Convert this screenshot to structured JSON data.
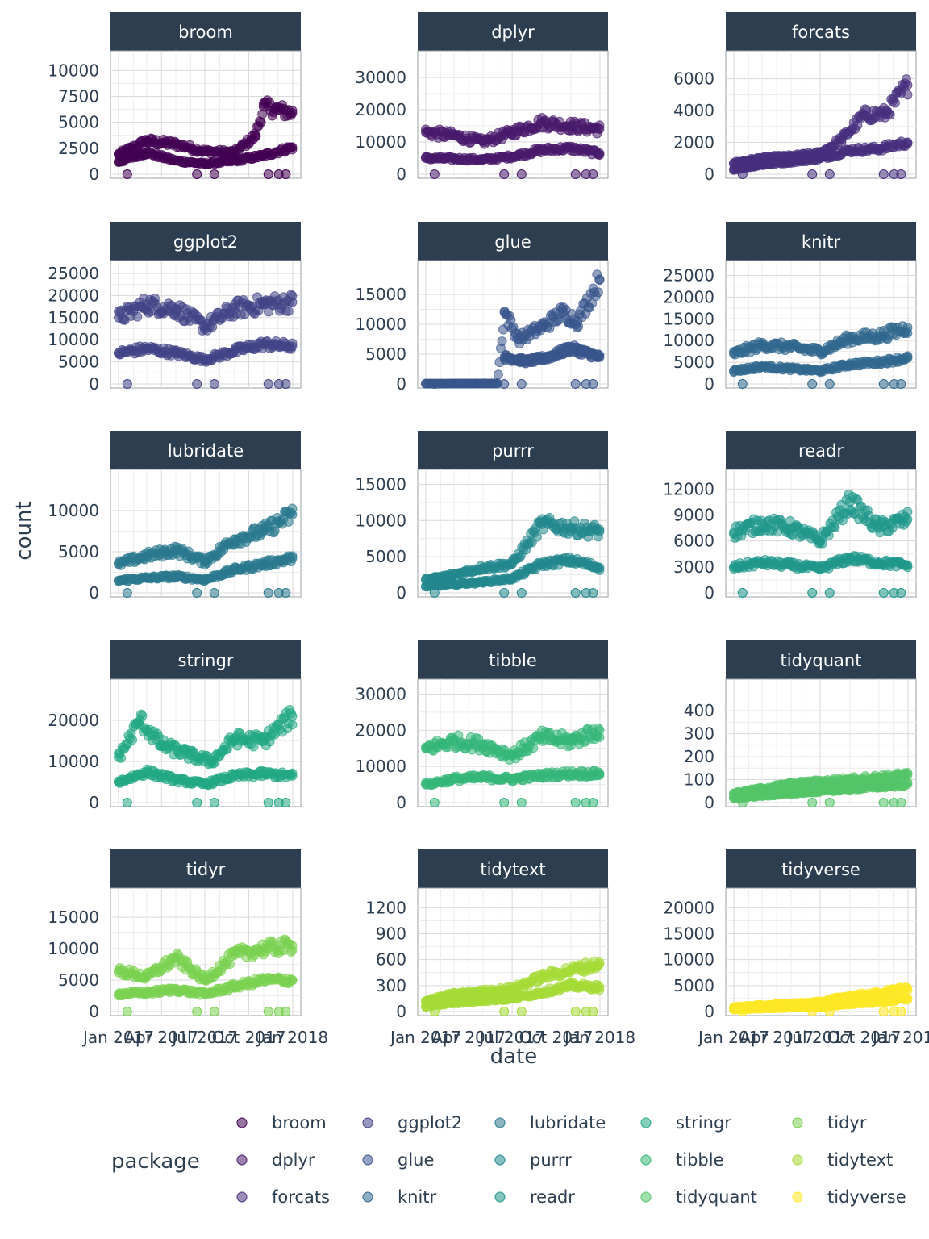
{
  "chart_data": {
    "type": "scatter",
    "xlabel": "date",
    "ylabel": "count",
    "x_tick_labels": [
      "Jan 2017",
      "Apr 2017",
      "Jul 2017",
      "Oct 2017",
      "Jan 2018"
    ],
    "x_range": [
      "2017-01-01",
      "2018-01-01"
    ],
    "grid": true,
    "legend": {
      "title": "package",
      "position": "bottom",
      "entries": [
        "broom",
        "dplyr",
        "forcats",
        "ggplot2",
        "glue",
        "knitr",
        "lubridate",
        "purrr",
        "readr",
        "stringr",
        "tibble",
        "tidyquant",
        "tidyr",
        "tidytext",
        "tidyverse"
      ]
    },
    "colors": {
      "broom": "#440154",
      "dplyr": "#481a6c",
      "forcats": "#472f7d",
      "ggplot2": "#414487",
      "glue": "#39568c",
      "knitr": "#31688e",
      "lubridate": "#2a788e",
      "purrr": "#23888e",
      "readr": "#1f988b",
      "stringr": "#22a884",
      "tibble": "#35b779",
      "tidyquant": "#54c568",
      "tidyr": "#7ad151",
      "tidytext": "#a5db36",
      "tidyverse": "#fde725"
    },
    "strip_color": "#2c3e50",
    "panels": [
      {
        "name": "broom",
        "ylim": [
          0,
          11500
        ],
        "yticks": [
          0,
          2500,
          5000,
          7500,
          10000
        ],
        "series": [
          {
            "x": [
              "2017-01-01",
              "2017-03-01",
              "2017-05-01",
              "2017-07-01",
              "2017-09-01",
              "2017-10-15",
              "2017-11-01",
              "2017-12-01",
              "2017-12-31"
            ],
            "y": [
              1900,
              3200,
              2900,
              2200,
              2100,
              3700,
              6500,
              6200,
              5900
            ]
          },
          {
            "x": [
              "2017-01-01",
              "2017-03-01",
              "2017-05-01",
              "2017-07-01",
              "2017-09-01",
              "2017-11-01",
              "2017-12-31"
            ],
            "y": [
              1200,
              2100,
              1300,
              1000,
              1300,
              1800,
              2600
            ]
          }
        ]
      },
      {
        "name": "dplyr",
        "ylim": [
          0,
          37000
        ],
        "yticks": [
          0,
          10000,
          20000,
          30000
        ],
        "series": [
          {
            "x": [
              "2017-01-01",
              "2017-03-01",
              "2017-05-01",
              "2017-07-01",
              "2017-09-01",
              "2017-11-01",
              "2017-12-31"
            ],
            "y": [
              13000,
              12000,
              10000,
              13000,
              16000,
              15000,
              14000
            ]
          },
          {
            "x": [
              "2017-01-01",
              "2017-03-01",
              "2017-05-01",
              "2017-07-01",
              "2017-09-01",
              "2017-11-01",
              "2017-12-31"
            ],
            "y": [
              5000,
              4800,
              4500,
              5500,
              7500,
              8000,
              6500
            ]
          }
        ]
      },
      {
        "name": "forcats",
        "ylim": [
          0,
          7500
        ],
        "yticks": [
          0,
          2000,
          4000,
          6000
        ],
        "series": [
          {
            "x": [
              "2017-01-01",
              "2017-03-01",
              "2017-05-01",
              "2017-07-01",
              "2017-08-15",
              "2017-10-01",
              "2017-11-15",
              "2017-12-31"
            ],
            "y": [
              700,
              1000,
              1100,
              1300,
              2200,
              3700,
              3800,
              5600
            ]
          },
          {
            "x": [
              "2017-01-01",
              "2017-03-01",
              "2017-05-01",
              "2017-07-01",
              "2017-09-01",
              "2017-11-01",
              "2017-12-31"
            ],
            "y": [
              300,
              600,
              800,
              1000,
              1500,
              1600,
              2000
            ]
          }
        ]
      },
      {
        "name": "ggplot2",
        "ylim": [
          0,
          27000
        ],
        "yticks": [
          0,
          5000,
          10000,
          15000,
          20000,
          25000
        ],
        "series": [
          {
            "x": [
              "2017-01-01",
              "2017-03-01",
              "2017-05-01",
              "2017-07-01",
              "2017-09-01",
              "2017-11-01",
              "2017-12-31"
            ],
            "y": [
              15000,
              18000,
              17000,
              13000,
              17000,
              18000,
              18500
            ]
          },
          {
            "x": [
              "2017-01-01",
              "2017-03-01",
              "2017-05-01",
              "2017-07-01",
              "2017-09-01",
              "2017-11-01",
              "2017-12-31"
            ],
            "y": [
              7000,
              8000,
              7000,
              5500,
              7500,
              9000,
              8500
            ]
          }
        ]
      },
      {
        "name": "glue",
        "ylim": [
          0,
          20000
        ],
        "yticks": [
          0,
          5000,
          10000,
          15000
        ],
        "series": [
          {
            "x": [
              "2017-01-01",
              "2017-05-31",
              "2017-06-15",
              "2017-07-15",
              "2017-09-01",
              "2017-10-15",
              "2017-11-15",
              "2017-12-31"
            ],
            "y": [
              50,
              80,
              12000,
              7500,
              9500,
              12000,
              10500,
              17500
            ]
          },
          {
            "x": [
              "2017-06-15",
              "2017-08-01",
              "2017-09-15",
              "2017-11-01",
              "2017-12-31"
            ],
            "y": [
              4500,
              3800,
              4500,
              6000,
              4500
            ]
          }
        ]
      },
      {
        "name": "knitr",
        "ylim": [
          0,
          27500
        ],
        "yticks": [
          0,
          5000,
          10000,
          15000,
          20000,
          25000
        ],
        "series": [
          {
            "x": [
              "2017-01-01",
              "2017-03-01",
              "2017-05-01",
              "2017-07-01",
              "2017-09-01",
              "2017-11-01",
              "2017-12-31"
            ],
            "y": [
              7000,
              9000,
              8500,
              7500,
              10500,
              11000,
              13000
            ]
          },
          {
            "x": [
              "2017-01-01",
              "2017-03-01",
              "2017-05-01",
              "2017-07-01",
              "2017-09-01",
              "2017-11-01",
              "2017-12-31"
            ],
            "y": [
              3000,
              4000,
              3500,
              3000,
              4500,
              5000,
              6000
            ]
          }
        ]
      },
      {
        "name": "lubridate",
        "ylim": [
          0,
          14500
        ],
        "yticks": [
          0,
          5000,
          10000
        ],
        "series": [
          {
            "x": [
              "2017-01-01",
              "2017-03-01",
              "2017-05-01",
              "2017-07-01",
              "2017-09-01",
              "2017-11-01",
              "2017-12-31"
            ],
            "y": [
              3500,
              4500,
              5200,
              3800,
              6500,
              7500,
              9500
            ]
          },
          {
            "x": [
              "2017-01-01",
              "2017-03-01",
              "2017-05-01",
              "2017-07-01",
              "2017-09-01",
              "2017-11-01",
              "2017-12-31"
            ],
            "y": [
              1500,
              1800,
              2000,
              1600,
              2800,
              3500,
              4200
            ]
          }
        ]
      },
      {
        "name": "purrr",
        "ylim": [
          0,
          16500
        ],
        "yticks": [
          0,
          5000,
          10000,
          15000
        ],
        "series": [
          {
            "x": [
              "2017-01-01",
              "2017-03-01",
              "2017-05-01",
              "2017-07-01",
              "2017-09-01",
              "2017-11-01",
              "2017-12-31"
            ],
            "y": [
              1800,
              2500,
              3500,
              4000,
              9500,
              9000,
              8500
            ]
          },
          {
            "x": [
              "2017-01-01",
              "2017-03-01",
              "2017-05-01",
              "2017-07-01",
              "2017-09-01",
              "2017-11-01",
              "2017-12-31"
            ],
            "y": [
              900,
              1200,
              1500,
              2000,
              4000,
              4500,
              3500
            ]
          }
        ]
      },
      {
        "name": "readr",
        "ylim": [
          0,
          13800
        ],
        "yticks": [
          0,
          3000,
          6000,
          9000,
          12000
        ],
        "series": [
          {
            "x": [
              "2017-01-01",
              "2017-03-01",
              "2017-05-01",
              "2017-07-01",
              "2017-09-01",
              "2017-11-01",
              "2017-12-31"
            ],
            "y": [
              7000,
              8000,
              7500,
              6000,
              10500,
              7500,
              8500
            ]
          },
          {
            "x": [
              "2017-01-01",
              "2017-03-01",
              "2017-05-01",
              "2017-07-01",
              "2017-09-01",
              "2017-11-01",
              "2017-12-31"
            ],
            "y": [
              3000,
              3500,
              3200,
              2800,
              4000,
              3500,
              3200
            ]
          }
        ]
      },
      {
        "name": "stringr",
        "ylim": [
          0,
          29000
        ],
        "yticks": [
          0,
          10000,
          20000
        ],
        "series": [
          {
            "x": [
              "2017-01-01",
              "2017-02-15",
              "2017-04-01",
              "2017-06-01",
              "2017-07-15",
              "2017-09-01",
              "2017-11-01",
              "2017-12-31"
            ],
            "y": [
              11000,
              20000,
              14000,
              11500,
              10000,
              15500,
              15000,
              21000
            ]
          },
          {
            "x": [
              "2017-01-01",
              "2017-03-01",
              "2017-05-01",
              "2017-07-01",
              "2017-09-01",
              "2017-11-01",
              "2017-12-31"
            ],
            "y": [
              5000,
              7500,
              5500,
              4500,
              6500,
              7000,
              6500
            ]
          }
        ]
      },
      {
        "name": "tibble",
        "ylim": [
          0,
          33000
        ],
        "yticks": [
          0,
          10000,
          20000,
          30000
        ],
        "series": [
          {
            "x": [
              "2017-01-01",
              "2017-03-01",
              "2017-05-01",
              "2017-07-01",
              "2017-09-01",
              "2017-11-01",
              "2017-12-31"
            ],
            "y": [
              15000,
              17000,
              16000,
              13000,
              18000,
              17000,
              20000
            ]
          },
          {
            "x": [
              "2017-01-01",
              "2017-03-01",
              "2017-05-01",
              "2017-07-01",
              "2017-09-01",
              "2017-11-01",
              "2017-12-31"
            ],
            "y": [
              5000,
              6500,
              7000,
              6500,
              7500,
              8000,
              8000
            ]
          }
        ]
      },
      {
        "name": "tidyquant",
        "ylim": [
          0,
          520
        ],
        "yticks": [
          0,
          100,
          200,
          300,
          400
        ],
        "series": [
          {
            "x": [
              "2017-01-01",
              "2017-03-01",
              "2017-05-01",
              "2017-07-01",
              "2017-09-01",
              "2017-11-01",
              "2017-12-31"
            ],
            "y": [
              40,
              60,
              80,
              90,
              100,
              110,
              120
            ]
          },
          {
            "x": [
              "2017-01-01",
              "2017-03-01",
              "2017-05-01",
              "2017-07-01",
              "2017-09-01",
              "2017-11-01",
              "2017-12-31"
            ],
            "y": [
              20,
              30,
              40,
              50,
              60,
              70,
              80
            ]
          }
        ]
      },
      {
        "name": "tidyr",
        "ylim": [
          0,
          19000
        ],
        "yticks": [
          0,
          5000,
          10000,
          15000
        ],
        "series": [
          {
            "x": [
              "2017-01-01",
              "2017-03-01",
              "2017-05-01",
              "2017-07-01",
              "2017-09-01",
              "2017-11-01",
              "2017-12-31"
            ],
            "y": [
              6500,
              5500,
              8500,
              5000,
              9000,
              10000,
              10500
            ]
          },
          {
            "x": [
              "2017-01-01",
              "2017-03-01",
              "2017-05-01",
              "2017-07-01",
              "2017-09-01",
              "2017-11-01",
              "2017-12-31"
            ],
            "y": [
              2800,
              3000,
              3500,
              2800,
              4000,
              5000,
              5000
            ]
          }
        ]
      },
      {
        "name": "tidytext",
        "ylim": [
          0,
          1380
        ],
        "yticks": [
          0,
          300,
          600,
          900,
          1200
        ],
        "series": [
          {
            "x": [
              "2017-01-01",
              "2017-03-01",
              "2017-05-01",
              "2017-07-01",
              "2017-09-01",
              "2017-11-01",
              "2017-12-31"
            ],
            "y": [
              120,
              200,
              230,
              260,
              400,
              480,
              550
            ]
          },
          {
            "x": [
              "2017-01-01",
              "2017-03-01",
              "2017-05-01",
              "2017-07-01",
              "2017-09-01",
              "2017-11-01",
              "2017-12-31"
            ],
            "y": [
              60,
              100,
              130,
              150,
              220,
              300,
              280
            ]
          }
        ]
      },
      {
        "name": "tidyverse",
        "ylim": [
          0,
          23000
        ],
        "yticks": [
          0,
          5000,
          10000,
          15000,
          20000
        ],
        "series": [
          {
            "x": [
              "2017-01-01",
              "2017-03-01",
              "2017-05-01",
              "2017-07-01",
              "2017-09-01",
              "2017-11-01",
              "2017-12-31"
            ],
            "y": [
              800,
              1200,
              1500,
              1800,
              3000,
              3500,
              4500
            ]
          },
          {
            "x": [
              "2017-01-01",
              "2017-03-01",
              "2017-05-01",
              "2017-07-01",
              "2017-09-01",
              "2017-11-01",
              "2017-12-31"
            ],
            "y": [
              400,
              600,
              800,
              900,
              1500,
              1800,
              2500
            ]
          }
        ]
      }
    ]
  }
}
